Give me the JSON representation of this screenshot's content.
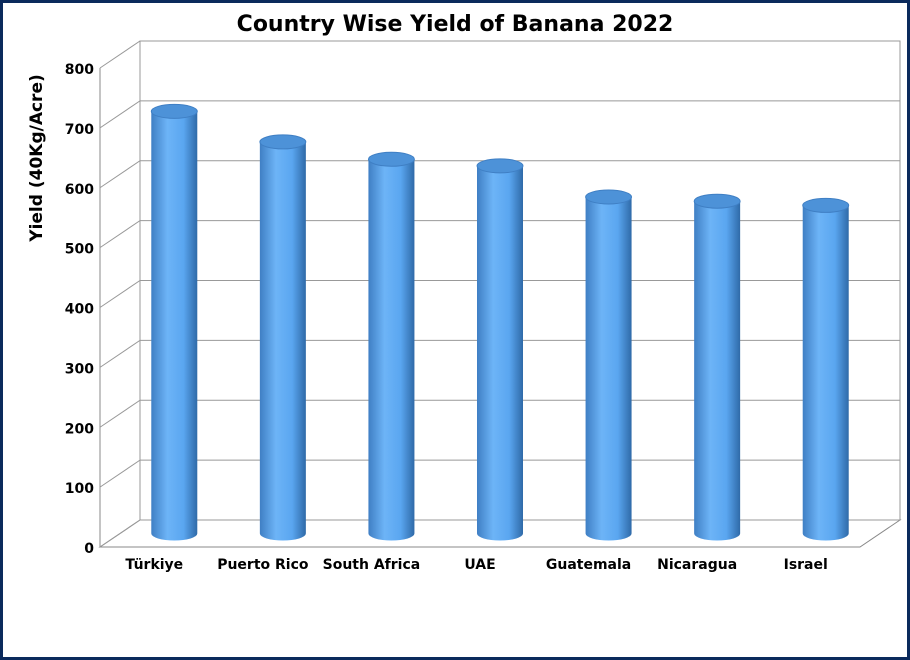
{
  "chart_data": {
    "type": "bar3d",
    "title": "Country Wise Yield of Banana 2022",
    "y_label": "Yield (40Kg/Acre)",
    "categories": [
      "Türkiye",
      "Puerto Rico",
      "South Africa",
      "UAE",
      "Guatemala",
      "Nicaragua",
      "Israel"
    ],
    "values": [
      705,
      654,
      625,
      614,
      562,
      555,
      548
    ],
    "color": "#5aa6f0",
    "ylim": [
      0,
      800
    ],
    "yticks": [
      0,
      100,
      200,
      300,
      400,
      500,
      600,
      700,
      800
    ],
    "grid": true
  }
}
